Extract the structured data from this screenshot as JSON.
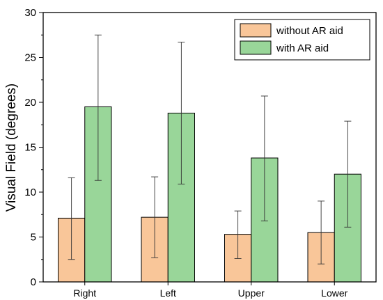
{
  "chart_data": {
    "type": "bar",
    "title": "",
    "xlabel": "",
    "ylabel": "Visual Field (degrees)",
    "ylim": [
      0,
      30
    ],
    "yticks": [
      0,
      5,
      10,
      15,
      20,
      25,
      30
    ],
    "grid": false,
    "legend_position": "top-right",
    "categories": [
      "Right",
      "Left",
      "Upper",
      "Lower"
    ],
    "series": [
      {
        "name": "without AR aid",
        "color": "#f9c699",
        "values": [
          7.1,
          7.2,
          5.3,
          5.5
        ],
        "error_low": [
          2.5,
          2.7,
          2.6,
          2.0
        ],
        "error_high": [
          11.6,
          11.7,
          7.9,
          9.0
        ]
      },
      {
        "name": "with AR aid",
        "color": "#99d699",
        "values": [
          19.5,
          18.8,
          13.8,
          12.0
        ],
        "error_low": [
          11.3,
          10.9,
          6.8,
          6.1
        ],
        "error_high": [
          27.5,
          26.7,
          20.7,
          17.9
        ]
      }
    ]
  }
}
